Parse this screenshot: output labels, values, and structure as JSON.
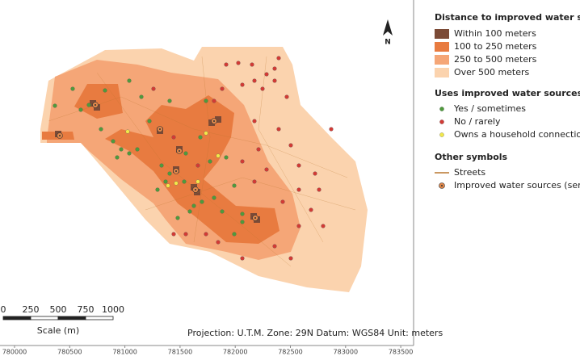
{
  "map": {
    "north_label": "N",
    "legend": {
      "distance": {
        "title": "Distance to improved water source",
        "items": [
          {
            "label": "Within 100 meters",
            "color": "#7b4a36"
          },
          {
            "label": "100 to 250 meters",
            "color": "#e87b40"
          },
          {
            "label": "250 to 500 meters",
            "color": "#f5a677"
          },
          {
            "label": "Over 500 meters",
            "color": "#fbd3ae"
          }
        ]
      },
      "uses": {
        "title": "Uses improved water sources?",
        "items": [
          {
            "label": "Yes / sometimes",
            "color": "#4e9a3c"
          },
          {
            "label": "No / rarely",
            "color": "#d23a35"
          },
          {
            "label": "Owns a household connection",
            "color": "#f1e84a"
          }
        ]
      },
      "other": {
        "title": "Other symbols",
        "items": [
          {
            "label": "Streets",
            "color": "#b8762e"
          },
          {
            "label": "Improved water sources (service",
            "color": "#e0874a"
          }
        ]
      }
    },
    "scale": {
      "ticks": [
        0,
        250,
        500,
        750,
        1000
      ],
      "label": "Scale (m)"
    },
    "footer": "Projection: U.T.M.  Zone: 29N  Datum: WGS84  Unit: meters",
    "x_ticks": [
      780000,
      780500,
      781000,
      781500,
      782000,
      782500,
      783000,
      783500
    ]
  }
}
